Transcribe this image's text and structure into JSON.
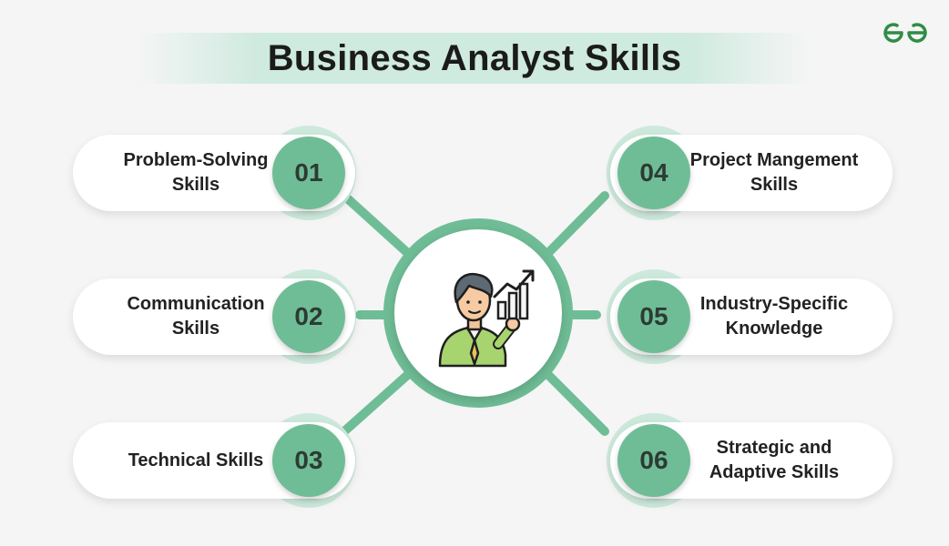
{
  "title": "Business Analyst Skills",
  "brand": {
    "icon": "geeksforgeeks-logo-icon",
    "color": "#2f8d46"
  },
  "colors": {
    "accent": "#6fbd96",
    "accent_light": "#cde9dc",
    "pill": "#ffffff",
    "background": "#f5f5f5"
  },
  "center": {
    "icon": "business-analyst-chart-icon"
  },
  "skills": [
    {
      "number": "01",
      "line1": "Problem-Solving",
      "line2": "Skills"
    },
    {
      "number": "02",
      "line1": "Communication",
      "line2": "Skills"
    },
    {
      "number": "03",
      "line1": "Technical Skills",
      "line2": ""
    },
    {
      "number": "04",
      "line1": "Project Mangement",
      "line2": "Skills"
    },
    {
      "number": "05",
      "line1": "Industry-Specific",
      "line2": "Knowledge"
    },
    {
      "number": "06",
      "line1": "Strategic and",
      "line2": "Adaptive Skills"
    }
  ]
}
